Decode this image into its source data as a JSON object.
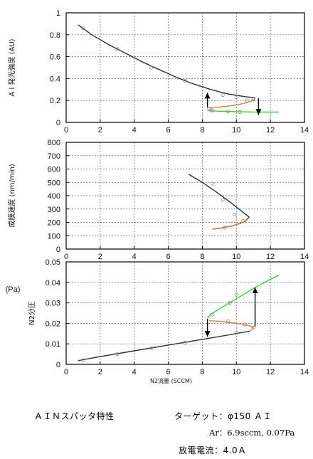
{
  "chart_data": [
    {
      "type": "line",
      "ylabel": "A l 発光強度 (AU)",
      "xlabel": "",
      "xlim": [
        0,
        14
      ],
      "ylim": [
        0,
        1
      ],
      "xticks": [
        "0",
        "2",
        "4",
        "6",
        "8",
        "10",
        "12",
        "14"
      ],
      "yticks": [
        "0",
        "0.2",
        "0.4",
        "0.6",
        "0.8",
        "1"
      ],
      "grid": true,
      "series": [
        {
          "color": "#1f3a2a",
          "kind": "line",
          "x": [
            0.7,
            1.5,
            2.5,
            3.5,
            4.5,
            5.5,
            6.5,
            7.5,
            8.5,
            9.5,
            10.5,
            11.1
          ],
          "y": [
            0.89,
            0.8,
            0.71,
            0.63,
            0.55,
            0.48,
            0.41,
            0.35,
            0.3,
            0.26,
            0.235,
            0.225
          ]
        },
        {
          "color": "#e07b39",
          "kind": "line",
          "x": [
            8.4,
            9.0,
            9.6,
            10.2,
            10.7,
            11.05,
            11.1
          ],
          "y": [
            0.135,
            0.14,
            0.15,
            0.165,
            0.185,
            0.205,
            0.225
          ]
        },
        {
          "color": "#33d133",
          "kind": "line",
          "x": [
            8.3,
            8.6,
            9.0,
            10.0,
            11.0,
            12.0,
            12.5
          ],
          "y": [
            0.11,
            0.105,
            0.102,
            0.098,
            0.095,
            0.094,
            0.094
          ]
        },
        {
          "color": "#888888",
          "kind": "points",
          "x": [
            1.0,
            3.0,
            5.0,
            7.0,
            8.5,
            9.2,
            10.0,
            10.6,
            8.4,
            8.6,
            9.5,
            10.2,
            11.0
          ],
          "y": [
            0.86,
            0.67,
            0.5,
            0.38,
            0.11,
            0.25,
            0.23,
            0.2,
            0.12,
            0.11,
            0.1,
            0.095,
            0.21
          ]
        }
      ],
      "arrows": [
        {
          "from": [
            8.3,
            0.135
          ],
          "to": [
            8.3,
            0.27
          ]
        },
        {
          "from": [
            11.3,
            0.22
          ],
          "to": [
            11.3,
            0.07
          ]
        }
      ]
    },
    {
      "type": "line",
      "ylabel": "成膜速度 (nm/min)",
      "xlabel": "",
      "xlim": [
        0,
        14
      ],
      "ylim": [
        0,
        800
      ],
      "xticks": [
        "0",
        "2",
        "4",
        "6",
        "8",
        "10",
        "12",
        "14"
      ],
      "yticks": [
        "0",
        "100",
        "200",
        "300",
        "400",
        "500",
        "600",
        "700",
        "800"
      ],
      "grid": true,
      "series": [
        {
          "color": "#1f3a2a",
          "kind": "line",
          "x": [
            7.2,
            8.0,
            8.8,
            9.6,
            10.3,
            10.75,
            10.5,
            9.8,
            9.0,
            8.6
          ],
          "y": [
            560,
            500,
            430,
            355,
            285,
            240,
            205,
            175,
            155,
            150
          ]
        },
        {
          "color": "#e07b39",
          "kind": "line",
          "x": [
            8.6,
            9.2,
            9.8,
            10.3,
            10.6,
            10.75
          ],
          "y": [
            150,
            160,
            175,
            195,
            215,
            235
          ]
        },
        {
          "color": "#888888",
          "kind": "points",
          "x": [
            8.6,
            9.2,
            9.9,
            10.4,
            9.3
          ],
          "y": [
            490,
            370,
            260,
            210,
            160
          ]
        }
      ]
    },
    {
      "type": "line",
      "ylabel": "N2分圧",
      "yunit": "(Pa)",
      "xlabel": "N2流量 (SCCM)",
      "xlim": [
        0,
        14
      ],
      "ylim": [
        0,
        0.05
      ],
      "xticks": [
        "0",
        "2",
        "4",
        "6",
        "8",
        "10",
        "12",
        "14"
      ],
      "yticks": [
        "0",
        "0.01",
        "0.02",
        "0.03",
        "0.04",
        "0.05"
      ],
      "grid": true,
      "series": [
        {
          "color": "#1f3a2a",
          "kind": "line",
          "x": [
            0.7,
            2.0,
            4.0,
            6.0,
            8.0,
            9.5,
            10.8
          ],
          "y": [
            0.0018,
            0.0038,
            0.0066,
            0.0094,
            0.0122,
            0.0143,
            0.0162
          ]
        },
        {
          "color": "#e07b39",
          "kind": "line",
          "x": [
            8.4,
            9.0,
            9.6,
            10.2,
            10.7,
            11.0,
            10.9,
            10.8
          ],
          "y": [
            0.0213,
            0.021,
            0.0205,
            0.0198,
            0.019,
            0.018,
            0.017,
            0.0162
          ]
        },
        {
          "color": "#33d133",
          "kind": "line",
          "x": [
            8.3,
            8.5,
            9.0,
            10.0,
            11.0,
            12.0,
            12.5
          ],
          "y": [
            0.0225,
            0.0245,
            0.027,
            0.032,
            0.037,
            0.0415,
            0.0435
          ]
        },
        {
          "color": "#888888",
          "kind": "points",
          "x": [
            1.0,
            3.0,
            5.0,
            7.0,
            8.6,
            10.0,
            9.5,
            10.5,
            11.0,
            9.6,
            10.0
          ],
          "y": [
            0.002,
            0.005,
            0.0078,
            0.0105,
            0.0243,
            0.0155,
            0.021,
            0.0195,
            0.018,
            0.03,
            0.034
          ]
        }
      ],
      "arrows": [
        {
          "from": [
            8.3,
            0.0222
          ],
          "to": [
            8.3,
            0.0135
          ]
        },
        {
          "from": [
            11.1,
            0.0185
          ],
          "to": [
            11.1,
            0.0375
          ]
        }
      ]
    }
  ],
  "caption": {
    "left_title": "ＡＩＮスパッタ特性",
    "target": "ターゲット：φ150 ＡＩ",
    "gas": "Ar：6.9sccm, 0.07Pa",
    "current": "放電電流：4.0Ａ"
  },
  "colors": {
    "black_curve": "#1f3a2a",
    "orange_curve": "#e07b39",
    "green_curve": "#33d133",
    "grid": "#5a5aa0",
    "axis": "#000000",
    "marker": "#888888"
  }
}
